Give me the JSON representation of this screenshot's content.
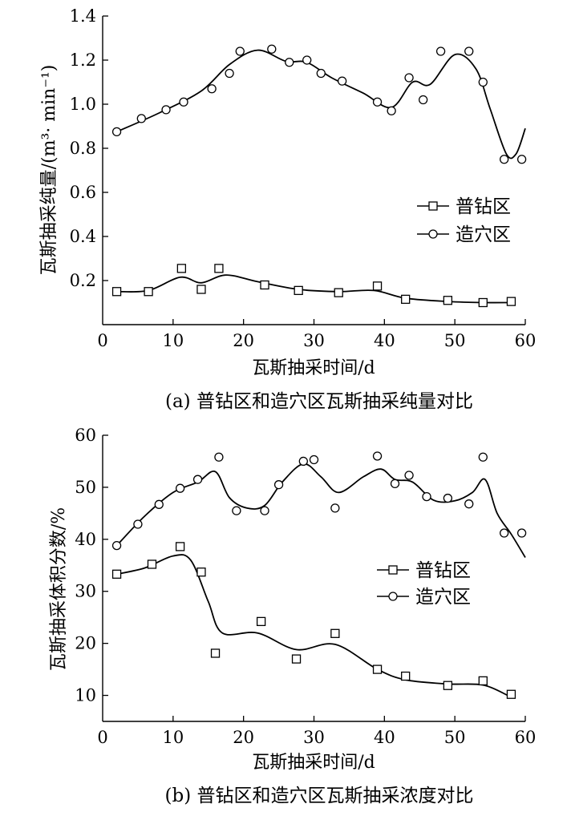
{
  "chart_data": [
    {
      "type": "line",
      "title": "(a)  普钻区和造穴区瓦斯抽采纯量对比",
      "xlabel": "瓦斯抽采时间/d",
      "ylabel": "瓦斯抽采纯量/(m³· min⁻¹)",
      "xlim": [
        0,
        60
      ],
      "ylim": [
        0,
        1.4
      ],
      "x_ticks": [
        "0",
        "10",
        "20",
        "30",
        "40",
        "50",
        "60"
      ],
      "y_ticks": [
        "0.2",
        "0.4",
        "0.6",
        "0.8",
        "1.0",
        "1.2",
        "1.4"
      ],
      "y_tick_values": [
        0.2,
        0.4,
        0.6,
        0.8,
        1.0,
        1.2,
        1.4
      ],
      "legend_position": "right",
      "series": [
        {
          "name": "普钻区",
          "marker": "square",
          "points": [
            [
              2.0,
              0.15
            ],
            [
              6.5,
              0.15
            ],
            [
              11.2,
              0.255
            ],
            [
              14.0,
              0.16
            ],
            [
              16.5,
              0.255
            ],
            [
              23.0,
              0.18
            ],
            [
              27.8,
              0.155
            ],
            [
              33.5,
              0.145
            ],
            [
              39.0,
              0.175
            ],
            [
              43.0,
              0.115
            ],
            [
              49.0,
              0.11
            ],
            [
              54.0,
              0.1
            ],
            [
              58.0,
              0.105
            ]
          ],
          "curve": [
            [
              2,
              0.15
            ],
            [
              6.5,
              0.155
            ],
            [
              11,
              0.215
            ],
            [
              14,
              0.19
            ],
            [
              17.5,
              0.225
            ],
            [
              22,
              0.195
            ],
            [
              27.8,
              0.16
            ],
            [
              33.5,
              0.15
            ],
            [
              38.5,
              0.155
            ],
            [
              43,
              0.12
            ],
            [
              49,
              0.105
            ],
            [
              54,
              0.1
            ],
            [
              58,
              0.1
            ]
          ]
        },
        {
          "name": "造穴区",
          "marker": "circle",
          "points": [
            [
              2.0,
              0.875
            ],
            [
              5.5,
              0.935
            ],
            [
              9.0,
              0.975
            ],
            [
              11.5,
              1.01
            ],
            [
              15.5,
              1.07
            ],
            [
              18.0,
              1.14
            ],
            [
              19.5,
              1.24
            ],
            [
              24.0,
              1.25
            ],
            [
              26.5,
              1.19
            ],
            [
              29.0,
              1.2
            ],
            [
              31.0,
              1.14
            ],
            [
              34.0,
              1.105
            ],
            [
              39.0,
              1.01
            ],
            [
              41.0,
              0.97
            ],
            [
              43.5,
              1.12
            ],
            [
              45.5,
              1.02
            ],
            [
              48.0,
              1.24
            ],
            [
              52.0,
              1.24
            ],
            [
              54.0,
              1.1
            ],
            [
              57.0,
              0.75
            ],
            [
              59.5,
              0.75
            ]
          ],
          "curve": [
            [
              2,
              0.875
            ],
            [
              8,
              0.96
            ],
            [
              14,
              1.06
            ],
            [
              18,
              1.18
            ],
            [
              22,
              1.245
            ],
            [
              26,
              1.195
            ],
            [
              29,
              1.19
            ],
            [
              32.5,
              1.12
            ],
            [
              37,
              1.05
            ],
            [
              41,
              0.985
            ],
            [
              44,
              1.1
            ],
            [
              46.5,
              1.09
            ],
            [
              50,
              1.225
            ],
            [
              53,
              1.16
            ],
            [
              55,
              0.98
            ],
            [
              57.3,
              0.775
            ],
            [
              58.7,
              0.775
            ],
            [
              60,
              0.89
            ]
          ]
        }
      ]
    },
    {
      "type": "line",
      "title": "(b)  普钻区和造穴区瓦斯抽采浓度对比",
      "xlabel": "瓦斯抽采时间/d",
      "ylabel": "瓦斯抽采体积分数/%",
      "xlim": [
        0,
        60
      ],
      "ylim": [
        5,
        60
      ],
      "x_ticks": [
        "0",
        "10",
        "20",
        "30",
        "40",
        "50",
        "60"
      ],
      "y_ticks": [
        "10",
        "20",
        "30",
        "40",
        "50",
        "60"
      ],
      "y_tick_values": [
        10,
        20,
        30,
        40,
        50,
        60
      ],
      "legend_position": "right",
      "series": [
        {
          "name": "普钻区",
          "marker": "square",
          "points": [
            [
              2.0,
              33.3
            ],
            [
              7.0,
              35.2
            ],
            [
              11.0,
              38.6
            ],
            [
              14.0,
              33.7
            ],
            [
              16.0,
              18.1
            ],
            [
              22.5,
              24.2
            ],
            [
              27.5,
              17.0
            ],
            [
              33.0,
              21.9
            ],
            [
              39.0,
              15.0
            ],
            [
              43.0,
              13.7
            ],
            [
              49.0,
              11.9
            ],
            [
              54.0,
              12.8
            ],
            [
              58.0,
              10.2
            ]
          ],
          "curve": [
            [
              2,
              33.3
            ],
            [
              6,
              34.5
            ],
            [
              10,
              36.8
            ],
            [
              12.5,
              36.0
            ],
            [
              15,
              28.0
            ],
            [
              17,
              22.0
            ],
            [
              22,
              22.0
            ],
            [
              27.5,
              18.8
            ],
            [
              33,
              19.8
            ],
            [
              39,
              15.0
            ],
            [
              43,
              13.0
            ],
            [
              49,
              12.2
            ],
            [
              54,
              12.0
            ],
            [
              57.5,
              10.0
            ]
          ]
        },
        {
          "name": "造穴区",
          "marker": "circle",
          "points": [
            [
              2.0,
              38.8
            ],
            [
              5.0,
              42.9
            ],
            [
              8.0,
              46.7
            ],
            [
              11.0,
              49.8
            ],
            [
              13.5,
              51.5
            ],
            [
              16.5,
              55.8
            ],
            [
              19.0,
              45.5
            ],
            [
              23.0,
              45.5
            ],
            [
              25.0,
              50.5
            ],
            [
              28.5,
              55.0
            ],
            [
              30.0,
              55.3
            ],
            [
              33.0,
              46.0
            ],
            [
              39.0,
              56.0
            ],
            [
              41.5,
              50.7
            ],
            [
              43.5,
              52.3
            ],
            [
              46.0,
              48.2
            ],
            [
              49.0,
              47.9
            ],
            [
              52.0,
              46.8
            ],
            [
              54.0,
              55.8
            ],
            [
              57.0,
              41.2
            ],
            [
              59.5,
              41.2
            ]
          ],
          "curve": [
            [
              2,
              38.8
            ],
            [
              6,
              44.5
            ],
            [
              10,
              49.0
            ],
            [
              13.5,
              51.0
            ],
            [
              16,
              53.0
            ],
            [
              18,
              48.0
            ],
            [
              20.5,
              46.0
            ],
            [
              23,
              46.5
            ],
            [
              25.5,
              51.0
            ],
            [
              28.5,
              54.5
            ],
            [
              31,
              52.0
            ],
            [
              33.5,
              49.0
            ],
            [
              37,
              52.0
            ],
            [
              39.5,
              53.5
            ],
            [
              41.5,
              51.5
            ],
            [
              44,
              51.0
            ],
            [
              47,
              47.5
            ],
            [
              50,
              47.4
            ],
            [
              52.5,
              49.0
            ],
            [
              54.3,
              51.5
            ],
            [
              56,
              45.0
            ],
            [
              58,
              41.0
            ],
            [
              60,
              36.5
            ]
          ]
        }
      ]
    }
  ]
}
